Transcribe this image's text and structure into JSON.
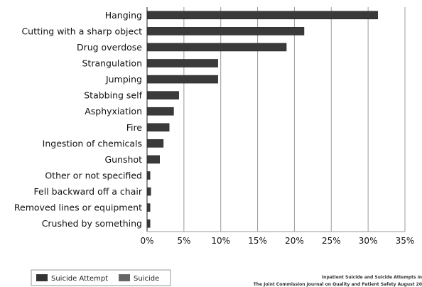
{
  "chart_data": {
    "type": "bar",
    "orientation": "horizontal",
    "categories": [
      "Hanging",
      "Cutting with a sharp object",
      "Drug overdose",
      "Strangulation",
      "Jumping",
      "Stabbing self",
      "Asphyxiation",
      "Fire",
      "Ingestion of chemicals",
      "Gunshot",
      "Other or not specified",
      "Fell backward off a chair",
      "Removed lines or equipment",
      "Crushed by something"
    ],
    "values": [
      31.3,
      21.3,
      18.9,
      9.6,
      9.6,
      4.3,
      3.6,
      3.0,
      2.2,
      1.7,
      0.4,
      0.5,
      0.4,
      0.4
    ],
    "xlim": [
      0,
      35
    ],
    "xticks": [
      "0%",
      "5%",
      "10%",
      "15%",
      "20%",
      "25%",
      "30%",
      "35%"
    ],
    "grid": true,
    "legend": {
      "placement": "bottom-left",
      "entries": [
        {
          "name": "Suicide Attempt",
          "color": "#333333"
        },
        {
          "name": "Suicide",
          "color": "#666666"
        }
      ]
    },
    "bar_color": "#3a3a3a",
    "source": [
      "Inpatient Suicide and Suicide Attempts in",
      "The Joint Commission Journal on Quality and Patient Safety August 20"
    ]
  }
}
